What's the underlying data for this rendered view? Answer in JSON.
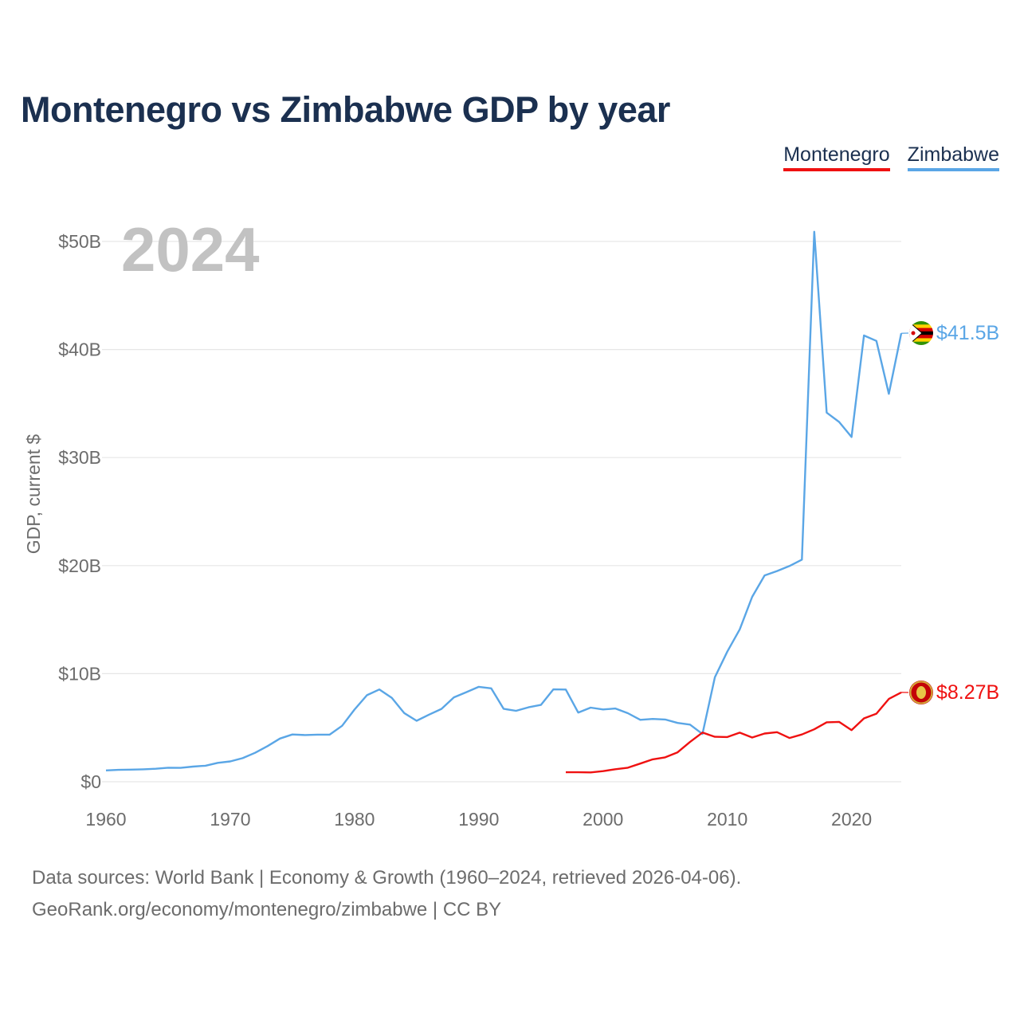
{
  "chart_data": {
    "type": "line",
    "title": "Montenegro vs Zimbabwe GDP by year",
    "year_label": "2024",
    "ylabel": "GDP, current $",
    "xlabel": "",
    "xlim": [
      1960,
      2024
    ],
    "ylim": [
      0,
      50
    ],
    "y_unit": "billions USD",
    "y_ticks": [
      0,
      10,
      20,
      30,
      40,
      50
    ],
    "y_tick_labels": [
      "$0",
      "$10B",
      "$20B",
      "$30B",
      "$40B",
      "$50B"
    ],
    "x_ticks": [
      1960,
      1970,
      1980,
      1990,
      2000,
      2010,
      2020
    ],
    "x_tick_labels": [
      "1960",
      "1970",
      "1980",
      "1990",
      "2000",
      "2010",
      "2020"
    ],
    "grid": true,
    "legend": "top-right",
    "series": [
      {
        "name": "Montenegro",
        "color": "#ef1111",
        "end_label": "$8.27B",
        "flag_icon": "montenegro-flag-icon",
        "x": [
          1997,
          1998,
          1999,
          2000,
          2001,
          2002,
          2003,
          2004,
          2005,
          2006,
          2007,
          2008,
          2009,
          2010,
          2011,
          2012,
          2013,
          2014,
          2015,
          2016,
          2017,
          2018,
          2019,
          2020,
          2021,
          2022,
          2023,
          2024
        ],
        "values": [
          0.88,
          0.88,
          0.86,
          0.98,
          1.16,
          1.3,
          1.68,
          2.07,
          2.26,
          2.72,
          3.68,
          4.55,
          4.16,
          4.14,
          4.54,
          4.09,
          4.46,
          4.59,
          4.05,
          4.37,
          4.85,
          5.5,
          5.54,
          4.78,
          5.86,
          6.3,
          7.66,
          8.27
        ]
      },
      {
        "name": "Zimbabwe",
        "color": "#5aa6e6",
        "end_label": "$41.5B",
        "flag_icon": "zimbabwe-flag-icon",
        "x": [
          1960,
          1961,
          1962,
          1963,
          1964,
          1965,
          1966,
          1967,
          1968,
          1969,
          1970,
          1971,
          1972,
          1973,
          1974,
          1975,
          1976,
          1977,
          1978,
          1979,
          1980,
          1981,
          1982,
          1983,
          1984,
          1985,
          1986,
          1987,
          1988,
          1989,
          1990,
          1991,
          1992,
          1993,
          1994,
          1995,
          1996,
          1997,
          1998,
          1999,
          2000,
          2001,
          2002,
          2003,
          2004,
          2005,
          2006,
          2007,
          2008,
          2009,
          2010,
          2011,
          2012,
          2013,
          2014,
          2015,
          2016,
          2017,
          2018,
          2019,
          2020,
          2021,
          2022,
          2023,
          2024
        ],
        "values": [
          1.05,
          1.1,
          1.12,
          1.15,
          1.2,
          1.3,
          1.28,
          1.4,
          1.48,
          1.75,
          1.88,
          2.18,
          2.68,
          3.3,
          4.0,
          4.37,
          4.32,
          4.36,
          4.36,
          5.18,
          6.68,
          8.01,
          8.54,
          7.76,
          6.35,
          5.64,
          6.21,
          6.74,
          7.81,
          8.29,
          8.78,
          8.64,
          6.75,
          6.56,
          6.89,
          7.11,
          8.55,
          8.53,
          6.4,
          6.86,
          6.69,
          6.78,
          6.34,
          5.73,
          5.81,
          5.76,
          5.44,
          5.29,
          4.42,
          9.67,
          12.04,
          14.1,
          17.11,
          19.09,
          19.5,
          19.96,
          20.55,
          50.9,
          34.16,
          33.3,
          31.9,
          41.3,
          40.8,
          35.9,
          41.5
        ]
      }
    ]
  },
  "footer": {
    "line1": "Data sources: World Bank | Economy & Growth (1960–2024, retrieved 2026-04-06).",
    "line2": "GeoRank.org/economy/montenegro/zimbabwe | CC BY"
  }
}
